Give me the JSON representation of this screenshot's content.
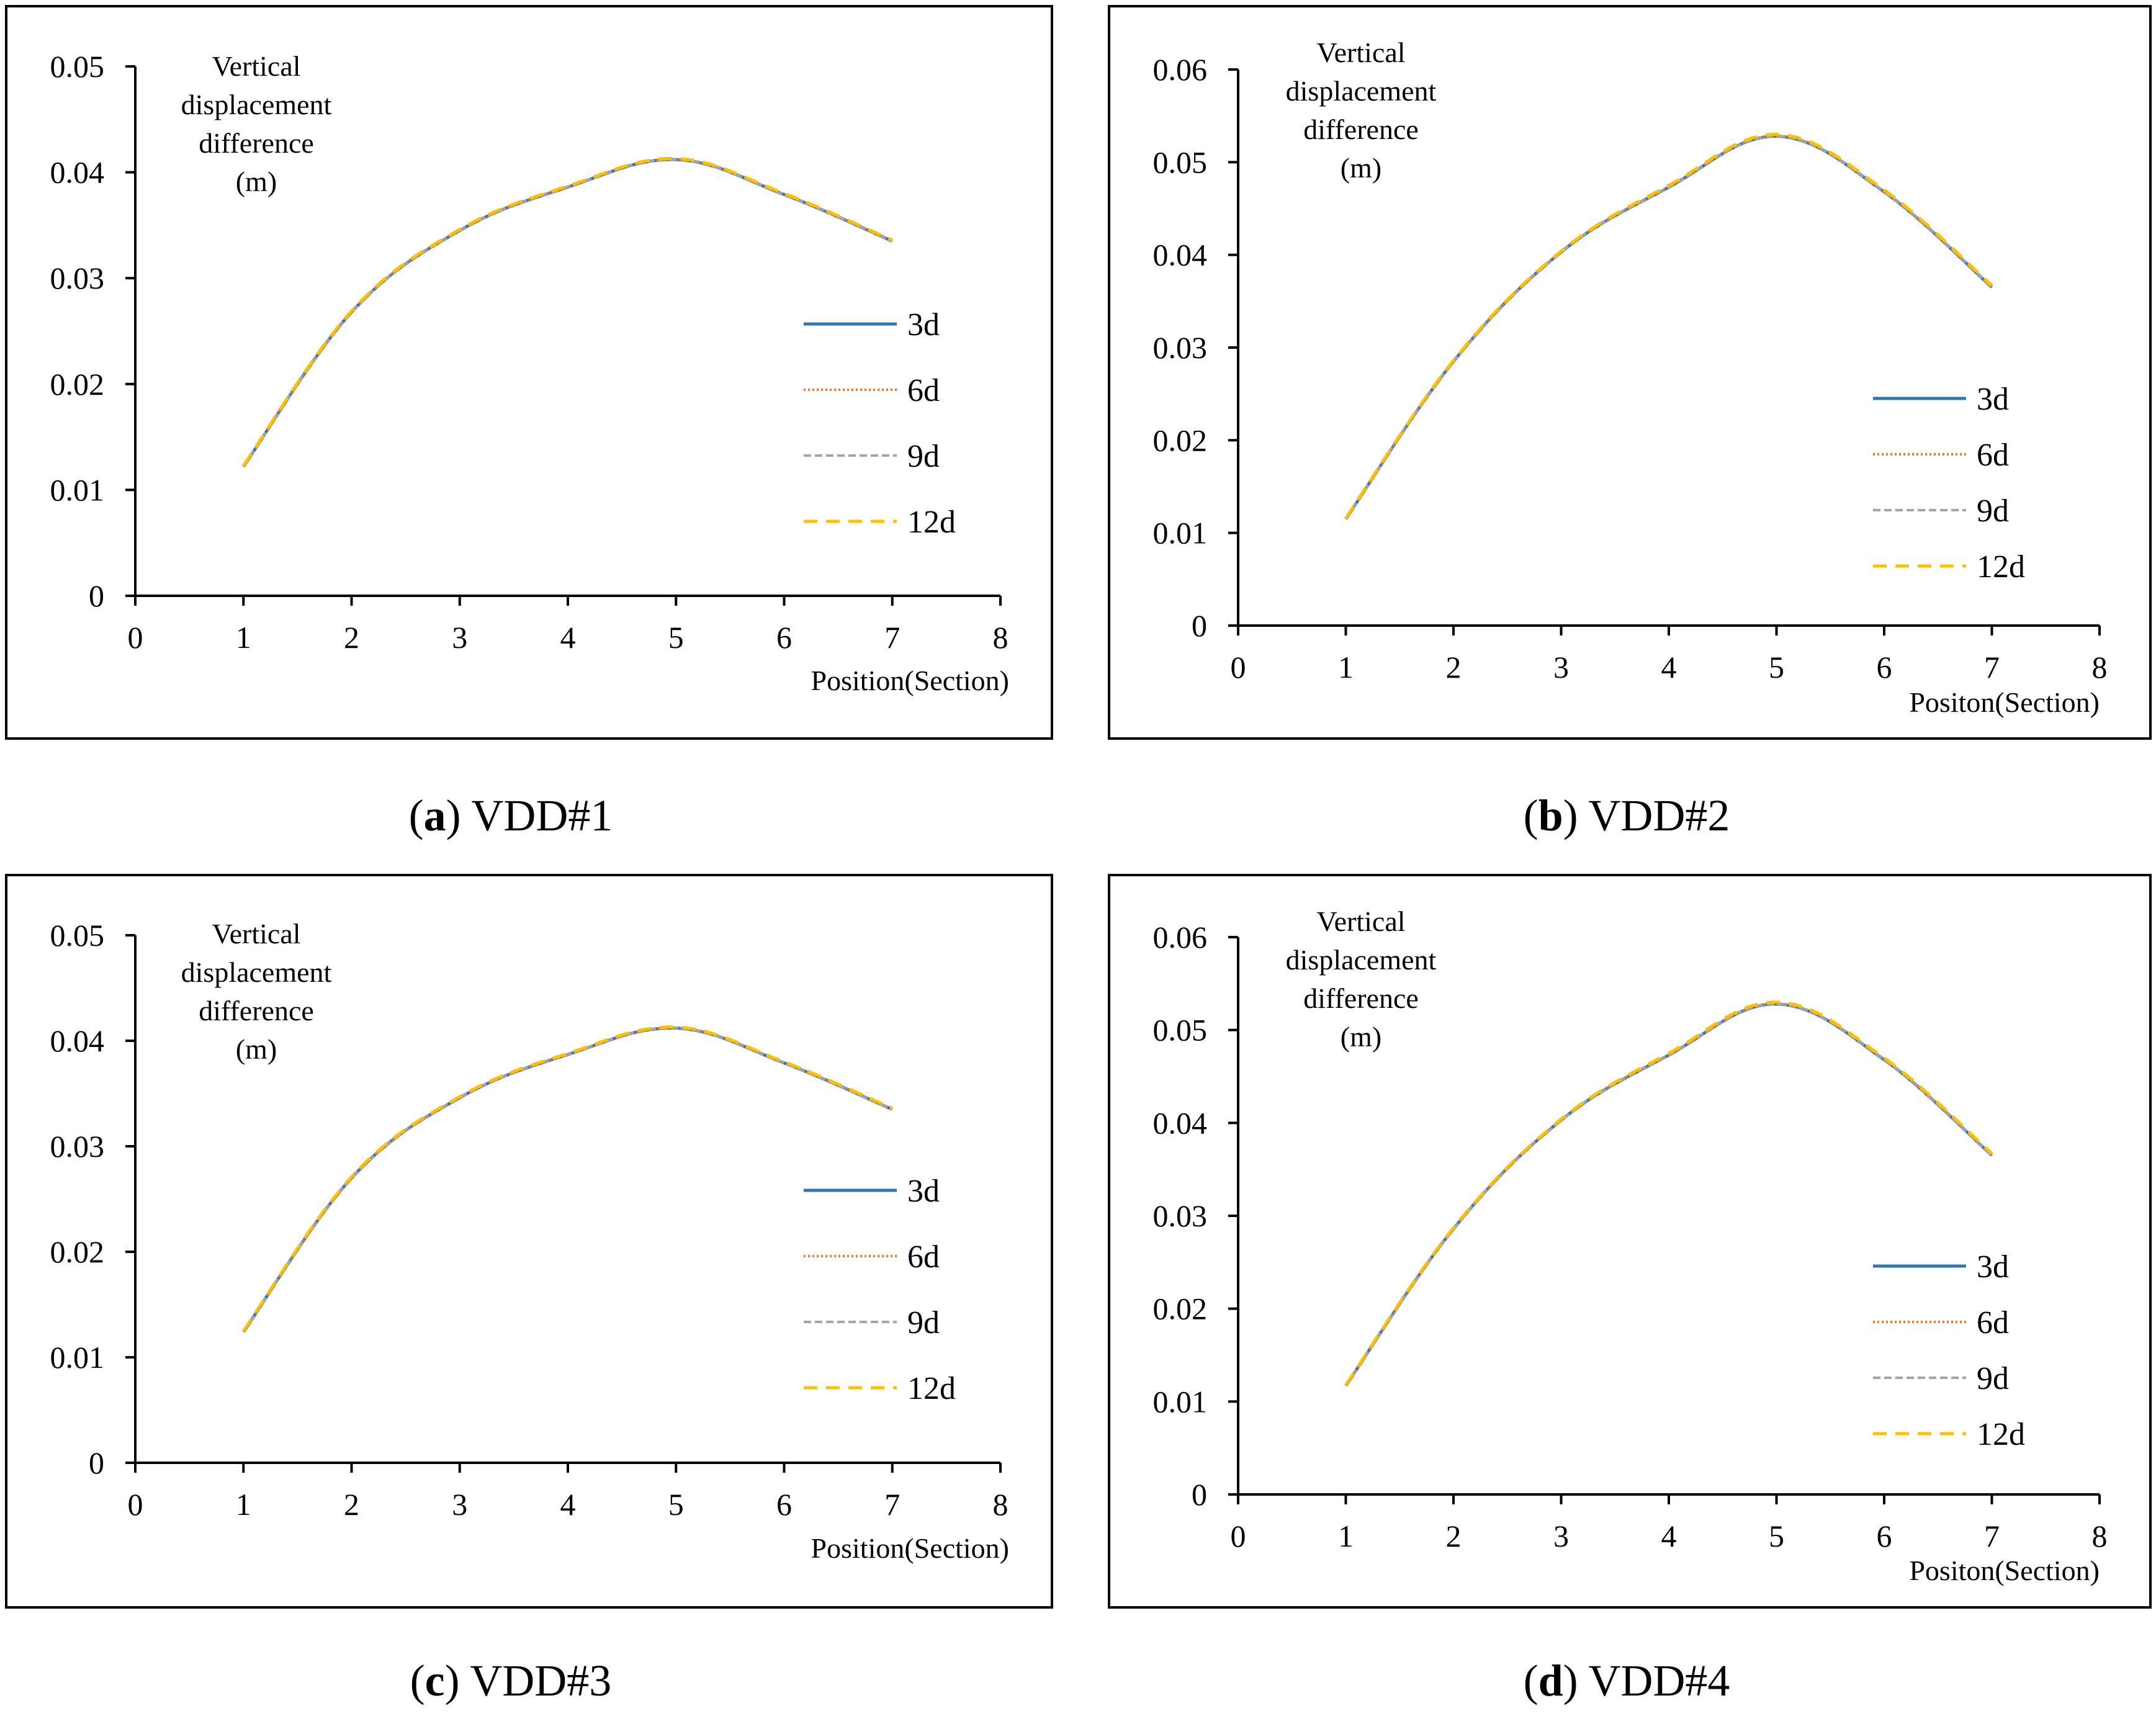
{
  "colors": {
    "3d": "#2E75B6",
    "6d": "#ED7D31",
    "9d": "#A5A5A5",
    "12d": "#FFC000"
  },
  "chart_data": [
    {
      "type": "line",
      "caption_letter": "a",
      "caption_text": "VDD#1",
      "ylabel_lines": [
        "Vertical",
        "displacement",
        "difference",
        "(m)"
      ],
      "xlabel": "Position(Section)",
      "xlim": [
        0,
        8
      ],
      "ylim": [
        0,
        0.05
      ],
      "xticks": [
        "0",
        "1",
        "2",
        "3",
        "4",
        "5",
        "6",
        "7",
        "8"
      ],
      "yticks": [
        "0",
        "0.01",
        "0.02",
        "0.03",
        "0.04",
        "0.05"
      ],
      "x": [
        1,
        2,
        3,
        4,
        5,
        6,
        7
      ],
      "series": [
        {
          "name": "3d",
          "values": [
            0.0122,
            0.0268,
            0.0345,
            0.0386,
            0.0412,
            0.0379,
            0.0335
          ]
        },
        {
          "name": "6d",
          "values": [
            0.0122,
            0.0268,
            0.0345,
            0.0386,
            0.0412,
            0.0379,
            0.0335
          ]
        },
        {
          "name": "9d",
          "values": [
            0.0122,
            0.0268,
            0.0345,
            0.0386,
            0.0412,
            0.0379,
            0.0335
          ]
        },
        {
          "name": "12d",
          "values": [
            0.0123,
            0.0269,
            0.0346,
            0.0387,
            0.0413,
            0.038,
            0.0336
          ]
        }
      ]
    },
    {
      "type": "line",
      "caption_letter": "b",
      "caption_text": "VDD#2",
      "ylabel_lines": [
        "Vertical",
        "displacement",
        "difference",
        "(m)"
      ],
      "xlabel": "Positon(Section)",
      "xlim": [
        0,
        8
      ],
      "ylim": [
        0,
        0.06
      ],
      "xticks": [
        "0",
        "1",
        "2",
        "3",
        "4",
        "5",
        "6",
        "7",
        "8"
      ],
      "yticks": [
        "0",
        "0.01",
        "0.02",
        "0.03",
        "0.04",
        "0.05",
        "0.06"
      ],
      "x": [
        1,
        2,
        3,
        4,
        5,
        6,
        7
      ],
      "series": [
        {
          "name": "3d",
          "values": [
            0.0115,
            0.0285,
            0.0403,
            0.0473,
            0.0528,
            0.0468,
            0.0365
          ]
        },
        {
          "name": "6d",
          "values": [
            0.0115,
            0.0285,
            0.0403,
            0.0473,
            0.0528,
            0.0468,
            0.0365
          ]
        },
        {
          "name": "9d",
          "values": [
            0.0115,
            0.0285,
            0.0403,
            0.0473,
            0.0528,
            0.0468,
            0.0365
          ]
        },
        {
          "name": "12d",
          "values": [
            0.0116,
            0.0286,
            0.0404,
            0.0475,
            0.053,
            0.047,
            0.0367
          ]
        }
      ]
    },
    {
      "type": "line",
      "caption_letter": "c",
      "caption_text": "VDD#3",
      "ylabel_lines": [
        "Vertical",
        "displacement",
        "difference",
        "(m)"
      ],
      "xlabel": "Position(Section)",
      "xlim": [
        0,
        8
      ],
      "ylim": [
        0,
        0.05
      ],
      "xticks": [
        "0",
        "1",
        "2",
        "3",
        "4",
        "5",
        "6",
        "7",
        "8"
      ],
      "yticks": [
        "0",
        "0.01",
        "0.02",
        "0.03",
        "0.04",
        "0.05"
      ],
      "x": [
        1,
        2,
        3,
        4,
        5,
        6,
        7
      ],
      "series": [
        {
          "name": "3d",
          "values": [
            0.0124,
            0.027,
            0.0346,
            0.0387,
            0.0412,
            0.0379,
            0.0335
          ]
        },
        {
          "name": "6d",
          "values": [
            0.0124,
            0.027,
            0.0346,
            0.0387,
            0.0412,
            0.0379,
            0.0335
          ]
        },
        {
          "name": "9d",
          "values": [
            0.0124,
            0.027,
            0.0346,
            0.0387,
            0.0412,
            0.0379,
            0.0335
          ]
        },
        {
          "name": "12d",
          "values": [
            0.0125,
            0.0271,
            0.0347,
            0.0388,
            0.0413,
            0.038,
            0.0336
          ]
        }
      ]
    },
    {
      "type": "line",
      "caption_letter": "d",
      "caption_text": "VDD#4",
      "ylabel_lines": [
        "Vertical",
        "displacement",
        "difference",
        "(m)"
      ],
      "xlabel": "Positon(Section)",
      "xlim": [
        0,
        8
      ],
      "ylim": [
        0,
        0.06
      ],
      "xticks": [
        "0",
        "1",
        "2",
        "3",
        "4",
        "5",
        "6",
        "7",
        "8"
      ],
      "yticks": [
        "0",
        "0.01",
        "0.02",
        "0.03",
        "0.04",
        "0.05",
        "0.06"
      ],
      "x": [
        1,
        2,
        3,
        4,
        5,
        6,
        7
      ],
      "series": [
        {
          "name": "3d",
          "values": [
            0.0117,
            0.0286,
            0.0403,
            0.0473,
            0.0528,
            0.0468,
            0.0365
          ]
        },
        {
          "name": "6d",
          "values": [
            0.0117,
            0.0286,
            0.0403,
            0.0473,
            0.0528,
            0.0468,
            0.0365
          ]
        },
        {
          "name": "9d",
          "values": [
            0.0117,
            0.0286,
            0.0403,
            0.0473,
            0.0528,
            0.0468,
            0.0365
          ]
        },
        {
          "name": "12d",
          "values": [
            0.0118,
            0.0287,
            0.0404,
            0.0475,
            0.053,
            0.047,
            0.0367
          ]
        }
      ]
    }
  ]
}
